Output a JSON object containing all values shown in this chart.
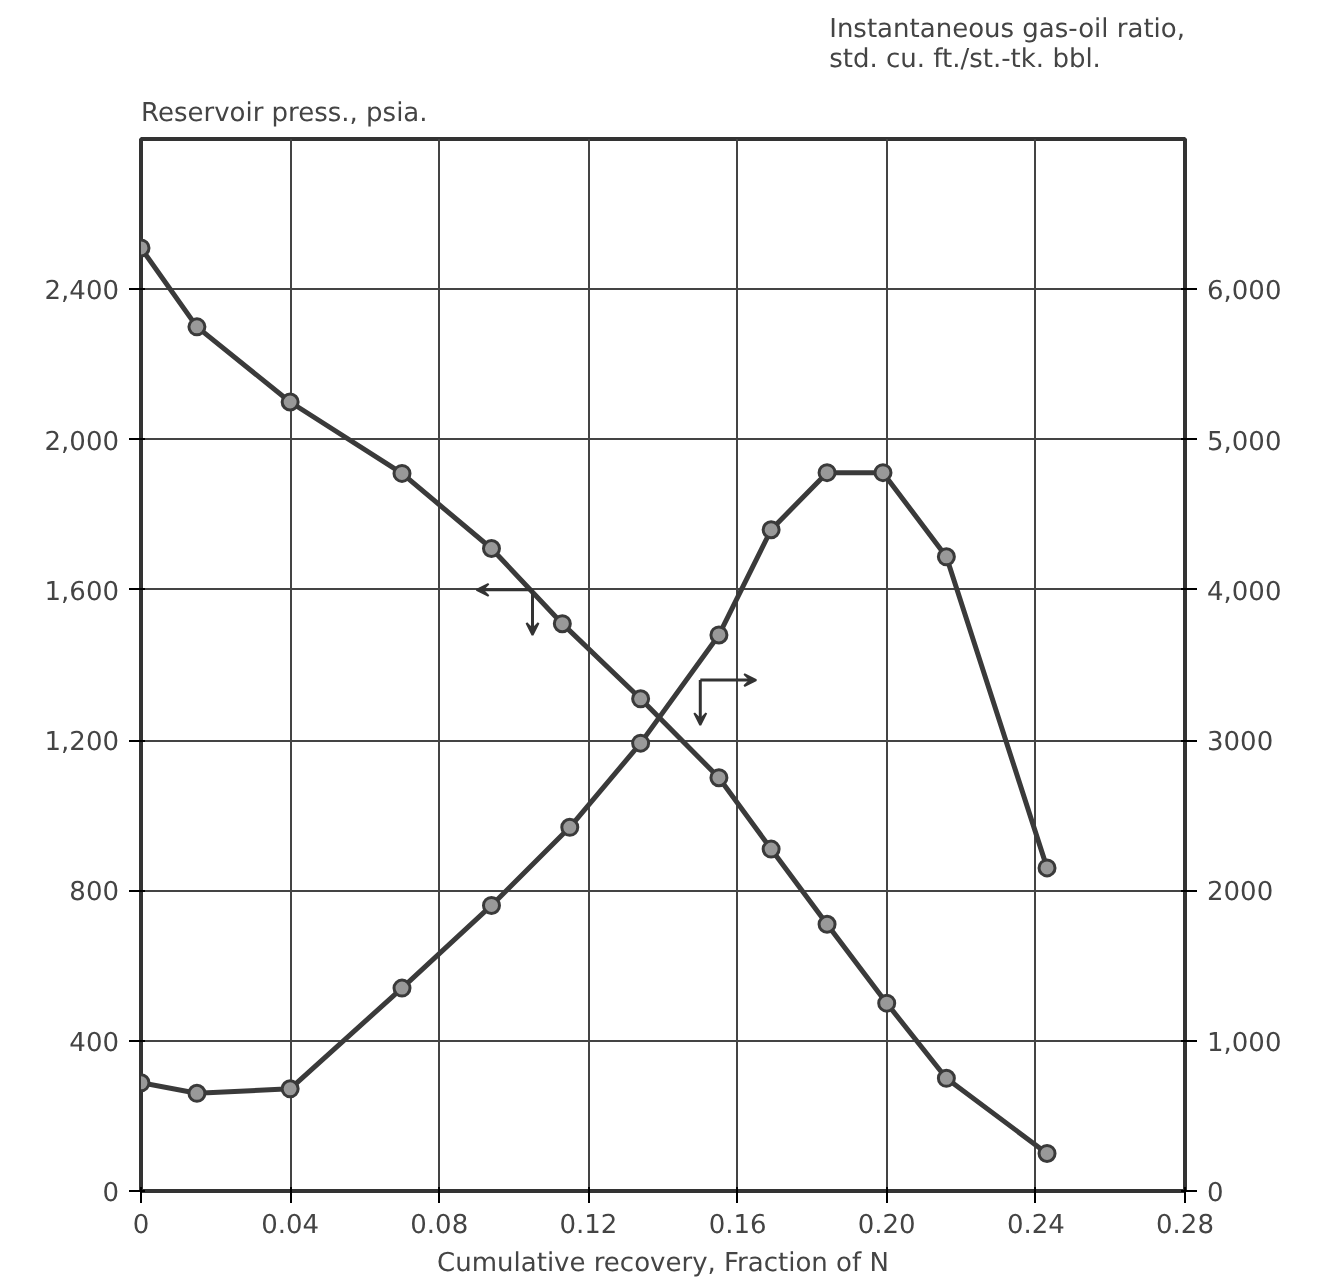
{
  "chart_data": {
    "type": "line",
    "xlabel": "Cumulative recovery, Fraction of N",
    "ylabel": "Reservoir press., psia.",
    "y2label": "Instantaneous gas-oil ratio,\nstd. cu. ft./st.-tk. bbl.",
    "xlim": [
      0,
      0.28
    ],
    "xticks": [
      0,
      0.04,
      0.08,
      0.12,
      0.16,
      {
        "value": 0.2,
        "label": "0.20"
      },
      0.24,
      0.28
    ],
    "ylim": [
      0,
      2800
    ],
    "yticks": [
      0,
      400,
      800,
      {
        "value": 1200,
        "label": "1,200"
      },
      {
        "value": 1600,
        "label": "1,600"
      },
      {
        "value": 2000,
        "label": "2,000"
      },
      {
        "value": 2400,
        "label": "2,400"
      }
    ],
    "y2lim": [
      0,
      7000
    ],
    "y2ticks": [
      0,
      {
        "value": 1000,
        "label": "1,000"
      },
      2000,
      3000,
      {
        "value": 4000,
        "label": "4,000"
      },
      {
        "value": 5000,
        "label": "5,000"
      },
      {
        "value": 6000,
        "label": "6,000"
      }
    ],
    "grid": true,
    "marker": "circle",
    "line_style": "solid",
    "series": [
      {
        "color": "#3a3a3a",
        "x": [
          0,
          0.015,
          0.04,
          0.07,
          0.094,
          0.113,
          0.134,
          0.155,
          0.169,
          0.184,
          0.2,
          0.216,
          0.243
        ],
        "values": [
          2510,
          2300,
          2100,
          1910,
          1710,
          1510,
          1310,
          1100,
          910,
          710,
          500,
          300,
          100
        ]
      },
      {
        "color": "#3a3a3a",
        "axis": "y2",
        "x": [
          0,
          0.015,
          0.04,
          0.07,
          0.094,
          0.115,
          0.134,
          0.155,
          0.169,
          0.184,
          0.199,
          0.216,
          0.243
        ],
        "values": [
          720,
          650,
          680,
          1350,
          1900,
          2420,
          2980,
          3700,
          4400,
          4780,
          4780,
          4220,
          2150
        ]
      }
    ]
  }
}
